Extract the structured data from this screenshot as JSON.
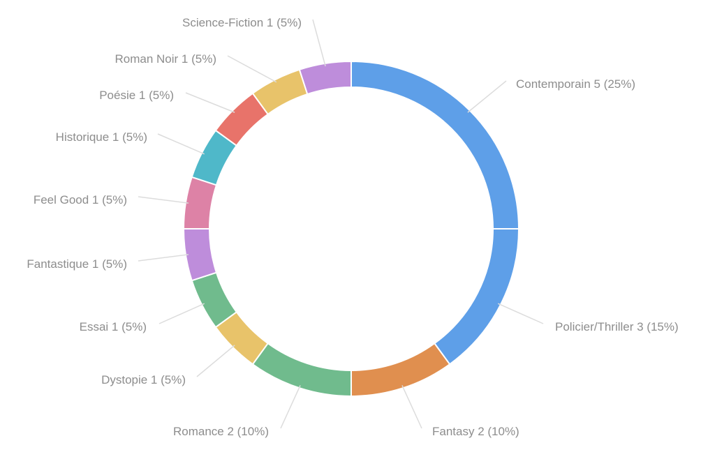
{
  "chart_data": {
    "type": "pie",
    "title": "",
    "categories": [
      "Contemporain",
      "Policier/Thriller",
      "Fantasy",
      "Romance",
      "Dystopie",
      "Essai",
      "Fantastique",
      "Feel Good",
      "Historique",
      "Poésie",
      "Roman Noir",
      "Science-Fiction"
    ],
    "values": [
      5,
      3,
      2,
      2,
      1,
      1,
      1,
      1,
      1,
      1,
      1,
      1
    ],
    "percentages": [
      "25%",
      "15%",
      "10%",
      "10%",
      "5%",
      "5%",
      "5%",
      "5%",
      "5%",
      "5%",
      "5%",
      "5%"
    ],
    "colors": [
      "#5e9fe8",
      "#5e9fe8",
      "#e08f4f",
      "#70bb8d",
      "#e8c36a",
      "#70bb8d",
      "#be8ddb",
      "#dd82a6",
      "#4fb8c9",
      "#e8736a",
      "#e8c36a",
      "#be8ddb"
    ],
    "donut": true,
    "legend": "labels on slices"
  }
}
